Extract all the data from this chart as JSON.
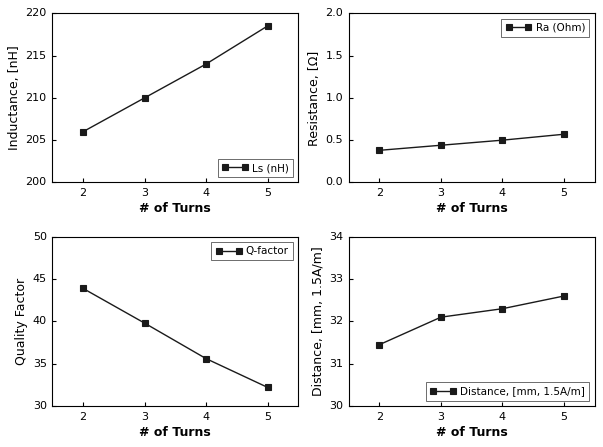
{
  "turns": [
    2,
    3,
    4,
    5
  ],
  "inductance": [
    206.0,
    210.0,
    214.0,
    218.5
  ],
  "resistance": [
    0.38,
    0.44,
    0.5,
    0.57
  ],
  "q_factor": [
    43.9,
    39.8,
    35.6,
    32.2
  ],
  "distance": [
    31.45,
    32.1,
    32.3,
    32.6
  ],
  "ind_ylim": [
    200,
    220
  ],
  "ind_yticks": [
    200,
    205,
    210,
    215,
    220
  ],
  "ind_ylabel": "Inductance, [nH]",
  "ind_legend": "Ls (nH)",
  "ind_legend_loc": "lower right",
  "res_ylim": [
    0.0,
    2.0
  ],
  "res_yticks": [
    0.0,
    0.5,
    1.0,
    1.5,
    2.0
  ],
  "res_ylabel": "Resistance, [Ω]",
  "res_legend": "Ra (Ohm)",
  "res_legend_loc": "upper right",
  "q_ylim": [
    30,
    50
  ],
  "q_yticks": [
    30,
    35,
    40,
    45,
    50
  ],
  "q_ylabel": "Quality Factor",
  "q_legend": "Q-factor",
  "q_legend_loc": "upper right",
  "dist_ylim": [
    30,
    34
  ],
  "dist_yticks": [
    30,
    31,
    32,
    33,
    34
  ],
  "dist_ylabel": "Distance, [mm, 1.5A/m]",
  "dist_legend": "Distance, [mm, 1.5A/m]",
  "dist_legend_loc": "lower right",
  "xlabel": "# of Turns",
  "xlim": [
    1.5,
    5.5
  ],
  "xticks": [
    2,
    3,
    4,
    5
  ],
  "line_color": "#1a1a1a",
  "marker": "s",
  "marker_color": "#1a1a1a",
  "marker_size": 4,
  "line_width": 1.0,
  "bg_color": "#ffffff",
  "label_fontsize": 9,
  "tick_fontsize": 8,
  "legend_fontsize": 7.5
}
